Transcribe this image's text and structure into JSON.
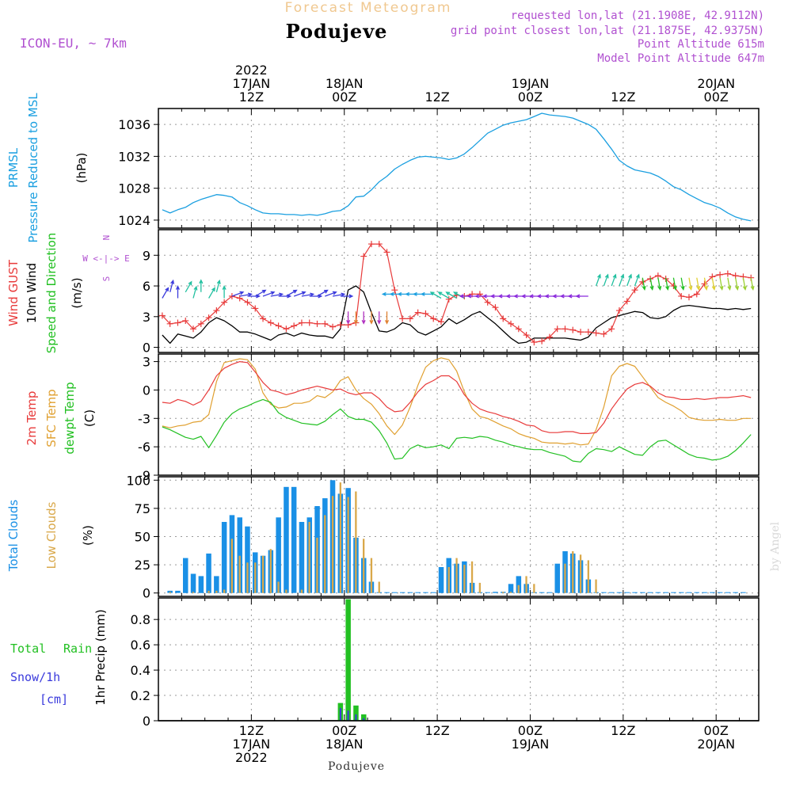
{
  "header": {
    "super_title": "Forecast Meteogram",
    "location": "Podujeve",
    "model": "ICON-EU, ~ 7km",
    "requested": "requested lon,lat (21.1908E, 42.9112N)",
    "grid_point": "grid point closest lon,lat (21.1875E, 42.9375N)",
    "point_altitude": "Point Altitude 615m",
    "model_altitude": "Model Point Altitude 647m",
    "footer_location": "Podujeve",
    "watermark": "by Angel"
  },
  "colors": {
    "pressure": "#1a9fe0",
    "gust": "#e83a3a",
    "wind": "#000000",
    "t2m": "#e83a3a",
    "tsfc": "#e0a030",
    "dewpt": "#22c022",
    "total_cloud": "#1a90e6",
    "low_cloud": "#d9a84a",
    "rain": "#22c022",
    "snow": "#3a3adc",
    "meta": "#b050d0",
    "grid": "#999999"
  },
  "time_axis": {
    "top": [
      {
        "t": 12,
        "lines": [
          "2022",
          "17JAN",
          "12Z"
        ]
      },
      {
        "t": 24,
        "lines": [
          "18JAN",
          "00Z"
        ]
      },
      {
        "t": 36,
        "lines": [
          "12Z"
        ]
      },
      {
        "t": 48,
        "lines": [
          "19JAN",
          "00Z"
        ]
      },
      {
        "t": 60,
        "lines": [
          "12Z"
        ]
      },
      {
        "t": 72,
        "lines": [
          "20JAN",
          "00Z"
        ]
      }
    ],
    "bottom": [
      {
        "t": 12,
        "lines": [
          "12Z",
          "17JAN",
          "2022"
        ]
      },
      {
        "t": 24,
        "lines": [
          "00Z",
          "18JAN"
        ]
      },
      {
        "t": 36,
        "lines": [
          "12Z"
        ]
      },
      {
        "t": 48,
        "lines": [
          "00Z",
          "19JAN"
        ]
      },
      {
        "t": 60,
        "lines": [
          "12Z"
        ]
      },
      {
        "t": 72,
        "lines": [
          "00Z",
          "20JAN"
        ]
      }
    ]
  },
  "panels": {
    "pressure": {
      "labels": [
        "PRMSL",
        "Pressure Reduced to MSL"
      ],
      "unit": "(hPa)",
      "ticks": [
        1024,
        1028,
        1032,
        1036
      ],
      "ylim": [
        1023,
        1038
      ]
    },
    "wind": {
      "labels": [
        "Wind GUST",
        "10m Wind",
        "Speed and Direction"
      ],
      "unit": "(m/s)",
      "ticks": [
        0,
        3,
        6,
        9
      ],
      "ylim": [
        -0.5,
        11.5
      ],
      "compass": [
        "N",
        "W <-|-> E",
        "S"
      ]
    },
    "temp": {
      "labels": [
        "2m Temp",
        "SFC Temp",
        "dewpt Temp"
      ],
      "unit": "(C)",
      "ticks": [
        -9,
        -6,
        -3,
        0,
        3
      ],
      "ylim": [
        -9,
        3.8
      ]
    },
    "cloud": {
      "labels": [
        "Total Clouds",
        "Low Clouds"
      ],
      "unit": "(%)",
      "ticks": [
        0,
        25,
        50,
        75,
        100
      ],
      "ylim": [
        -3,
        103
      ]
    },
    "precip": {
      "labels": [
        "Total",
        "Rain",
        "Snow/1h",
        "[cm]"
      ],
      "unit": "1hr Precip (mm)",
      "ticks": [
        0,
        0.2,
        0.4,
        0.6,
        0.8
      ],
      "ylim": [
        0,
        0.97
      ]
    }
  },
  "chart_data": [
    {
      "type": "line",
      "name": "pressure",
      "t_start": 0.5,
      "t_step": 1,
      "series": [
        {
          "name": "PRMSL",
          "values": [
            1025.3,
            1024.9,
            1025.3,
            1025.6,
            1026.2,
            1026.6,
            1026.9,
            1027.2,
            1027.1,
            1026.9,
            1026.2,
            1025.8,
            1025.3,
            1024.9,
            1024.8,
            1024.8,
            1024.7,
            1024.7,
            1024.6,
            1024.7,
            1024.6,
            1024.8,
            1025.1,
            1025.2,
            1025.8,
            1026.9,
            1027.0,
            1027.8,
            1028.8,
            1029.5,
            1030.4,
            1031.0,
            1031.5,
            1031.9,
            1032.0,
            1031.9,
            1031.8,
            1031.6,
            1031.8,
            1032.3,
            1033.1,
            1034.0,
            1034.9,
            1035.4,
            1035.9,
            1036.2,
            1036.4,
            1036.6,
            1037.0,
            1037.4,
            1037.2,
            1037.1,
            1037.0,
            1036.8,
            1036.4,
            1036.0,
            1035.4,
            1034.2,
            1032.9,
            1031.5,
            1030.8,
            1030.3,
            1030.1,
            1029.9,
            1029.5,
            1028.9,
            1028.2,
            1027.8,
            1027.2,
            1026.7,
            1026.2,
            1025.9,
            1025.5,
            1024.9,
            1024.4,
            1024.1,
            1023.9
          ]
        }
      ]
    },
    {
      "type": "line",
      "name": "wind",
      "t_start": 0.5,
      "t_step": 1,
      "series": [
        {
          "name": "Wind GUST",
          "values": [
            3.1,
            2.3,
            2.4,
            2.6,
            1.8,
            2.3,
            2.9,
            3.6,
            4.4,
            5.0,
            4.8,
            4.4,
            3.8,
            2.8,
            2.4,
            2.1,
            1.8,
            2.1,
            2.4,
            2.4,
            2.3,
            2.3,
            2.0,
            2.2,
            2.2,
            2.4,
            8.9,
            10.1,
            10.1,
            9.3,
            5.6,
            2.8,
            2.8,
            3.4,
            3.3,
            2.8,
            2.5,
            4.7,
            5.1,
            5.0,
            5.2,
            5.2,
            4.4,
            3.9,
            2.8,
            2.3,
            1.8,
            1.2,
            0.5,
            0.6,
            1.0,
            1.8,
            1.8,
            1.7,
            1.5,
            1.5,
            1.4,
            1.3,
            1.8,
            3.6,
            4.5,
            5.6,
            6.4,
            6.7,
            7.0,
            6.7,
            6.0,
            5.0,
            4.9,
            5.2,
            6.2,
            6.9,
            7.1,
            7.2,
            7.0,
            6.9,
            6.8
          ]
        },
        {
          "name": "10m Wind",
          "values": [
            1.2,
            0.4,
            1.3,
            1.1,
            0.9,
            1.5,
            2.4,
            2.9,
            2.6,
            2.1,
            1.5,
            1.5,
            1.3,
            1.0,
            0.7,
            1.2,
            1.4,
            1.1,
            1.4,
            1.2,
            1.1,
            1.1,
            0.9,
            1.8,
            5.6,
            6.0,
            5.4,
            3.4,
            1.6,
            1.5,
            1.8,
            2.4,
            2.2,
            1.5,
            1.2,
            1.6,
            2.0,
            2.8,
            2.3,
            2.7,
            3.2,
            3.5,
            2.9,
            2.3,
            1.6,
            0.9,
            0.4,
            0.5,
            0.9,
            0.9,
            0.9,
            0.9,
            0.9,
            0.8,
            0.7,
            1.0,
            1.9,
            2.4,
            2.9,
            3.1,
            3.3,
            3.5,
            3.4,
            2.9,
            2.8,
            3.0,
            3.6,
            4.0,
            4.1,
            4.0,
            3.9,
            3.8,
            3.8,
            3.7,
            3.8,
            3.7,
            3.8
          ]
        }
      ]
    },
    {
      "type": "line",
      "name": "temperature",
      "t_start": 0.5,
      "t_step": 1,
      "series": [
        {
          "name": "2m Temp",
          "values": [
            -1.3,
            -1.4,
            -1.0,
            -1.2,
            -1.6,
            -1.2,
            0.0,
            1.5,
            2.3,
            2.7,
            3.0,
            2.9,
            1.9,
            0.8,
            0.0,
            -0.2,
            -0.5,
            -0.3,
            0.0,
            0.2,
            0.4,
            0.2,
            0.0,
            0.1,
            -0.3,
            -0.5,
            -0.3,
            -0.3,
            -0.9,
            -1.8,
            -2.3,
            -2.2,
            -1.3,
            -0.2,
            0.6,
            1.0,
            1.5,
            1.5,
            0.9,
            -0.5,
            -1.4,
            -2.0,
            -2.3,
            -2.5,
            -2.8,
            -3.0,
            -3.3,
            -3.7,
            -3.8,
            -4.3,
            -4.5,
            -4.5,
            -4.4,
            -4.4,
            -4.6,
            -4.6,
            -4.5,
            -3.5,
            -2.0,
            -0.9,
            0.1,
            0.6,
            0.8,
            0.4,
            -0.3,
            -0.7,
            -0.8,
            -1.0,
            -1.0,
            -0.9,
            -1.0,
            -0.9,
            -0.8,
            -0.8,
            -0.7,
            -0.6,
            -0.8
          ]
        },
        {
          "name": "SFC Temp",
          "values": [
            -3.8,
            -4.0,
            -3.8,
            -3.7,
            -3.4,
            -3.3,
            -2.6,
            0.9,
            2.9,
            3.1,
            3.3,
            3.2,
            2.2,
            -0.3,
            -1.5,
            -1.9,
            -1.8,
            -1.4,
            -1.4,
            -1.2,
            -0.6,
            -0.8,
            -0.2,
            1.0,
            1.4,
            0.0,
            -0.9,
            -1.5,
            -2.5,
            -3.8,
            -4.7,
            -3.7,
            -1.8,
            0.5,
            2.4,
            3.1,
            3.4,
            3.2,
            2.0,
            -0.2,
            -2.0,
            -2.8,
            -3.0,
            -3.4,
            -3.8,
            -4.1,
            -4.6,
            -4.9,
            -5.1,
            -5.5,
            -5.6,
            -5.6,
            -5.7,
            -5.6,
            -5.8,
            -5.7,
            -4.2,
            -1.8,
            1.5,
            2.5,
            2.8,
            2.5,
            1.4,
            0.3,
            -0.8,
            -1.3,
            -1.7,
            -2.2,
            -2.9,
            -3.1,
            -3.2,
            -3.2,
            -3.1,
            -3.2,
            -3.2,
            -3.0,
            -3.0
          ]
        },
        {
          "name": "dewpt Temp",
          "values": [
            -3.9,
            -4.2,
            -4.6,
            -5.0,
            -5.2,
            -4.9,
            -6.1,
            -4.8,
            -3.4,
            -2.5,
            -2.0,
            -1.7,
            -1.3,
            -1.0,
            -1.3,
            -2.4,
            -2.9,
            -3.2,
            -3.5,
            -3.6,
            -3.7,
            -3.3,
            -2.6,
            -2.0,
            -2.8,
            -3.1,
            -3.1,
            -3.4,
            -4.3,
            -5.6,
            -7.3,
            -7.2,
            -6.2,
            -5.8,
            -6.1,
            -6.0,
            -5.8,
            -6.2,
            -5.1,
            -5.0,
            -5.1,
            -4.9,
            -5.0,
            -5.3,
            -5.5,
            -5.8,
            -6.0,
            -6.2,
            -6.3,
            -6.3,
            -6.6,
            -6.8,
            -7.0,
            -7.5,
            -7.6,
            -6.7,
            -6.2,
            -6.3,
            -6.5,
            -6.0,
            -6.4,
            -6.8,
            -6.9,
            -6.0,
            -5.4,
            -5.3,
            -5.8,
            -6.3,
            -6.8,
            -7.1,
            -7.2,
            -7.4,
            -7.3,
            -7.0,
            -6.4,
            -5.6,
            -4.7
          ]
        }
      ]
    },
    {
      "type": "bar",
      "name": "clouds",
      "t_start": 1.5,
      "t_step": 1,
      "series": [
        {
          "name": "Total Clouds",
          "values": [
            2,
            2,
            31,
            17,
            15,
            35,
            15,
            63,
            69,
            67,
            59,
            36,
            33,
            38,
            67,
            94,
            94,
            63,
            67,
            77,
            84,
            100,
            88,
            93,
            49,
            31,
            10,
            0,
            0,
            0,
            0,
            0,
            0,
            0,
            0,
            23,
            31,
            26,
            28,
            9,
            0,
            0,
            1,
            1,
            8,
            15,
            8,
            0,
            0,
            0,
            26,
            37,
            35,
            29,
            12,
            0,
            0,
            0,
            0,
            0,
            0,
            0,
            0,
            0,
            0,
            0,
            0,
            0,
            0,
            0,
            0,
            0,
            0,
            0,
            0
          ]
        },
        {
          "name": "Low Clouds",
          "values": [
            1,
            0,
            0,
            1,
            0,
            2,
            2,
            3,
            48,
            33,
            27,
            27,
            33,
            39,
            10,
            3,
            0,
            3,
            63,
            49,
            69,
            86,
            98,
            85,
            90,
            48,
            31,
            10,
            0,
            0,
            0,
            0,
            0,
            0,
            0,
            0,
            23,
            31,
            25,
            28,
            9,
            0,
            0,
            1,
            1,
            7,
            15,
            8,
            0,
            0,
            0,
            26,
            37,
            34,
            29,
            12,
            0,
            0,
            0,
            0,
            0,
            0,
            0,
            0,
            0,
            0,
            0,
            0,
            0,
            0,
            0,
            0,
            0,
            0,
            0
          ]
        }
      ]
    },
    {
      "type": "bar",
      "name": "precipitation",
      "t_start": 22.5,
      "t_step": 1,
      "series": [
        {
          "name": "Total Rain",
          "values": [
            0,
            0.14,
            0.96,
            0.12,
            0.05,
            0
          ]
        },
        {
          "name": "Snow/1h",
          "values": [
            0,
            0.1,
            0.08,
            0.05,
            0.02,
            0
          ]
        }
      ]
    }
  ]
}
